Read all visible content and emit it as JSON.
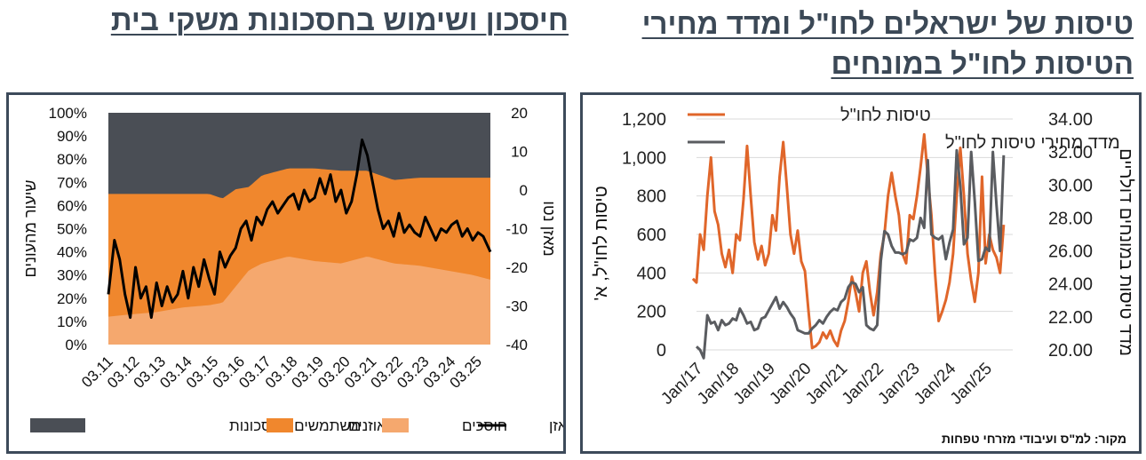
{
  "left": {
    "title": "חיסכון ושימוש בחסכונות משקי בית",
    "chart_data": {
      "type": "area",
      "y_left_label": "שיעור מהעונים",
      "y_right_label": "מאזן נטו",
      "y_left_ticks": [
        "0%",
        "10%",
        "20%",
        "30%",
        "40%",
        "50%",
        "60%",
        "70%",
        "80%",
        "90%",
        "100%"
      ],
      "y_right_ticks": [
        "-40",
        "-30",
        "-20",
        "-10",
        "0",
        "10",
        "20"
      ],
      "ylim_left": [
        0,
        100
      ],
      "ylim_right": [
        -40,
        20
      ],
      "x_ticks": [
        "03.11",
        "03.12",
        "03.13",
        "03.14",
        "03.15",
        "03.16",
        "03.17",
        "03.18",
        "03.19",
        "03.20",
        "03.21",
        "03.22",
        "03.23",
        "03.24",
        "03.25"
      ],
      "x_range": [
        2011.17,
        2025.67
      ],
      "series": [
        {
          "name": "חוסכים",
          "color": "#f5a86e",
          "type": "area",
          "x": [
            2011.17,
            2012.0,
            2013.0,
            2014.0,
            2015.0,
            2015.5,
            2016.0,
            2016.5,
            2017.0,
            2018.0,
            2019.0,
            2020.0,
            2021.0,
            2022.0,
            2023.0,
            2024.0,
            2025.0,
            2025.67
          ],
          "values": [
            12,
            13,
            14,
            16,
            17,
            18,
            25,
            32,
            35,
            38,
            36,
            35,
            38,
            35,
            34,
            32,
            30,
            28
          ]
        },
        {
          "name": "מאוזנים",
          "color": "#f0872d",
          "type": "area",
          "x": [
            2011.17,
            2012.0,
            2013.0,
            2014.0,
            2015.0,
            2016.0,
            2016.5,
            2017.0,
            2018.0,
            2019.0,
            2020.0,
            2021.0,
            2022.0,
            2023.0,
            2024.0,
            2025.0,
            2025.67
          ],
          "values": [
            53,
            52,
            51,
            49,
            48,
            42,
            36,
            38,
            38,
            40,
            40,
            37,
            36,
            38,
            40,
            42,
            44
          ]
        },
        {
          "name": "משתמשים בחסכונות",
          "color": "#4a4e55",
          "type": "area",
          "x": [
            2011.17,
            2025.67
          ],
          "values": [
            "remainder",
            "remainder"
          ]
        },
        {
          "name": "מאזן",
          "color": "#000000",
          "type": "line",
          "axis": "right",
          "x": [
            2011.17,
            2011.4,
            2011.6,
            2011.8,
            2012.0,
            2012.2,
            2012.4,
            2012.6,
            2012.8,
            2013.0,
            2013.2,
            2013.4,
            2013.6,
            2013.8,
            2014.0,
            2014.2,
            2014.4,
            2014.6,
            2014.8,
            2015.0,
            2015.2,
            2015.4,
            2015.6,
            2015.8,
            2016.0,
            2016.2,
            2016.4,
            2016.6,
            2016.8,
            2017.0,
            2017.2,
            2017.4,
            2017.6,
            2017.8,
            2018.0,
            2018.2,
            2018.4,
            2018.6,
            2018.8,
            2019.0,
            2019.2,
            2019.4,
            2019.6,
            2019.8,
            2020.0,
            2020.2,
            2020.4,
            2020.6,
            2020.8,
            2021.0,
            2021.2,
            2021.4,
            2021.6,
            2021.8,
            2022.0,
            2022.2,
            2022.4,
            2022.6,
            2022.8,
            2023.0,
            2023.2,
            2023.4,
            2023.6,
            2023.8,
            2024.0,
            2024.2,
            2024.4,
            2024.6,
            2024.8,
            2025.0,
            2025.2,
            2025.4,
            2025.67
          ],
          "values": [
            -27,
            -13,
            -18,
            -27,
            -33,
            -20,
            -28,
            -25,
            -33,
            -24,
            -30,
            -25,
            -29,
            -27,
            -21,
            -28,
            -20,
            -25,
            -18,
            -23,
            -27,
            -16,
            -20,
            -17,
            -15,
            -10,
            -8,
            -13,
            -7,
            -9,
            -5,
            -3,
            -6,
            -4,
            -2,
            -1,
            -5,
            0,
            -3,
            -2,
            3,
            -1,
            4,
            -3,
            0,
            -6,
            -3,
            4,
            13,
            9,
            2,
            -5,
            -10,
            -8,
            -12,
            -6,
            -11,
            -9,
            -11,
            -12,
            -7,
            -10,
            -13,
            -10,
            -11,
            -9,
            -8,
            -12,
            -10,
            -13,
            -11,
            -12,
            -16
          ]
        }
      ],
      "legend": [
        "משתמשים בחסכונות",
        "מאוזנים",
        "חוסכים",
        "מאזן"
      ],
      "legend_position": "bottom"
    }
  },
  "right": {
    "title": "טיסות של ישראלים לחו\"ל ומדד מחירי הטיסות לחו\"ל במונחים",
    "chart_data": {
      "type": "line",
      "y_left_label": "טיסות לחו\"ל, א'",
      "y_right_label": "מדד טיסות במונחים דולריים",
      "y_left_ticks": [
        "0",
        "200",
        "400",
        "600",
        "800",
        "1,000",
        "1,200"
      ],
      "y_right_ticks": [
        "20.00",
        "22.00",
        "24.00",
        "26.00",
        "28.00",
        "30.00",
        "32.00",
        "34.00"
      ],
      "ylim_left": [
        0,
        1200
      ],
      "ylim_right": [
        20,
        34
      ],
      "x_ticks": [
        "Jan/17",
        "Jan/18",
        "Jan/19",
        "Jan/20",
        "Jan/21",
        "Jan/22",
        "Jan/23",
        "Jan/24",
        "Jan/25"
      ],
      "x_range": [
        2017.0,
        2025.75
      ],
      "grid": true,
      "series": [
        {
          "name": "טיסות לחו\"ל",
          "color": "#e0662a",
          "axis": "left",
          "x": [
            2016.9,
            2017.0,
            2017.1,
            2017.2,
            2017.3,
            2017.4,
            2017.5,
            2017.6,
            2017.7,
            2017.8,
            2017.9,
            2018.0,
            2018.1,
            2018.2,
            2018.3,
            2018.4,
            2018.5,
            2018.6,
            2018.7,
            2018.8,
            2018.9,
            2019.0,
            2019.1,
            2019.2,
            2019.3,
            2019.4,
            2019.5,
            2019.6,
            2019.7,
            2019.8,
            2019.9,
            2020.0,
            2020.1,
            2020.2,
            2020.3,
            2020.4,
            2020.5,
            2020.6,
            2020.7,
            2020.8,
            2020.9,
            2021.0,
            2021.1,
            2021.2,
            2021.3,
            2021.4,
            2021.5,
            2021.6,
            2021.7,
            2021.8,
            2021.9,
            2022.0,
            2022.1,
            2022.2,
            2022.3,
            2022.4,
            2022.5,
            2022.6,
            2022.7,
            2022.8,
            2022.9,
            2023.0,
            2023.1,
            2023.2,
            2023.3,
            2023.4,
            2023.5,
            2023.6,
            2023.7,
            2023.8,
            2023.9,
            2024.0,
            2024.1,
            2024.2,
            2024.3,
            2024.4,
            2024.5,
            2024.6,
            2024.7,
            2024.8,
            2024.9,
            2025.0,
            2025.1,
            2025.2,
            2025.3,
            2025.4,
            2025.5
          ],
          "values": [
            370,
            350,
            600,
            520,
            800,
            1000,
            720,
            650,
            500,
            430,
            520,
            400,
            600,
            570,
            780,
            1060,
            800,
            560,
            470,
            540,
            440,
            500,
            700,
            620,
            900,
            1080,
            850,
            600,
            500,
            620,
            460,
            410,
            200,
            10,
            20,
            40,
            90,
            60,
            100,
            50,
            20,
            100,
            150,
            250,
            380,
            300,
            200,
            400,
            460,
            300,
            180,
            300,
            500,
            600,
            800,
            920,
            800,
            700,
            500,
            450,
            700,
            680,
            800,
            950,
            1120,
            900,
            700,
            400,
            150,
            200,
            260,
            350,
            500,
            800,
            1050,
            800,
            500,
            360,
            250,
            400,
            900,
            450,
            600,
            520,
            480,
            400,
            650
          ]
        },
        {
          "name": "מדד מחירי טיסות לחו\"ל",
          "color": "#5a5c60",
          "axis": "right",
          "x": [
            2017.0,
            2017.1,
            2017.2,
            2017.3,
            2017.4,
            2017.5,
            2017.6,
            2017.7,
            2017.8,
            2017.9,
            2018.0,
            2018.1,
            2018.2,
            2018.3,
            2018.4,
            2018.5,
            2018.6,
            2018.7,
            2018.8,
            2018.9,
            2019.0,
            2019.1,
            2019.2,
            2019.3,
            2019.4,
            2019.5,
            2019.6,
            2019.7,
            2019.8,
            2019.9,
            2020.0,
            2020.1,
            2020.2,
            2020.3,
            2020.4,
            2020.5,
            2020.6,
            2020.7,
            2020.8,
            2020.9,
            2021.0,
            2021.1,
            2021.2,
            2021.3,
            2021.4,
            2021.5,
            2021.6,
            2021.7,
            2021.8,
            2021.9,
            2022.0,
            2022.1,
            2022.2,
            2022.3,
            2022.4,
            2022.5,
            2022.6,
            2022.7,
            2022.8,
            2022.9,
            2023.0,
            2023.1,
            2023.2,
            2023.3,
            2023.4,
            2023.5,
            2023.6,
            2023.7,
            2023.8,
            2023.9,
            2024.0,
            2024.1,
            2024.2,
            2024.3,
            2024.4,
            2024.5,
            2024.6,
            2024.7,
            2024.8,
            2024.9,
            2025.0,
            2025.1,
            2025.2,
            2025.3,
            2025.4,
            2025.5
          ],
          "values": [
            20.2,
            20.0,
            19.5,
            22.1,
            21.6,
            21.7,
            21.2,
            21.8,
            21.5,
            21.6,
            21.9,
            21.8,
            22.5,
            22.1,
            21.6,
            21.7,
            21.2,
            21.3,
            21.9,
            22.0,
            22.4,
            22.8,
            23.2,
            22.5,
            22.9,
            22.6,
            22.2,
            21.9,
            21.2,
            21.1,
            21.0,
            21.0,
            21.3,
            21.5,
            21.8,
            21.6,
            22.0,
            22.3,
            22.5,
            22.4,
            22.9,
            23.1,
            23.8,
            24.1,
            24.0,
            23.5,
            23.8,
            21.5,
            21.3,
            21.2,
            21.5,
            25.4,
            27.2,
            27.0,
            26.3,
            25.9,
            25.9,
            25.8,
            25.9,
            26.7,
            26.6,
            26.8,
            28.0,
            27.4,
            31.5,
            27.0,
            26.8,
            26.7,
            26.9,
            25.5,
            26.5,
            27.3,
            32.1,
            29.9,
            26.4,
            26.8,
            32.0,
            29.0,
            25.4,
            25.5,
            26.2,
            26.0,
            32.0,
            28.8,
            26.0,
            31.8
          ]
        }
      ],
      "legend": [
        "טיסות לחו\"ל",
        "מדד מחירי טיסות לחו\"ל"
      ],
      "legend_position": "top-left"
    },
    "source": "מקור: למ\"ס ועיבודי מזרחי טפחות"
  }
}
